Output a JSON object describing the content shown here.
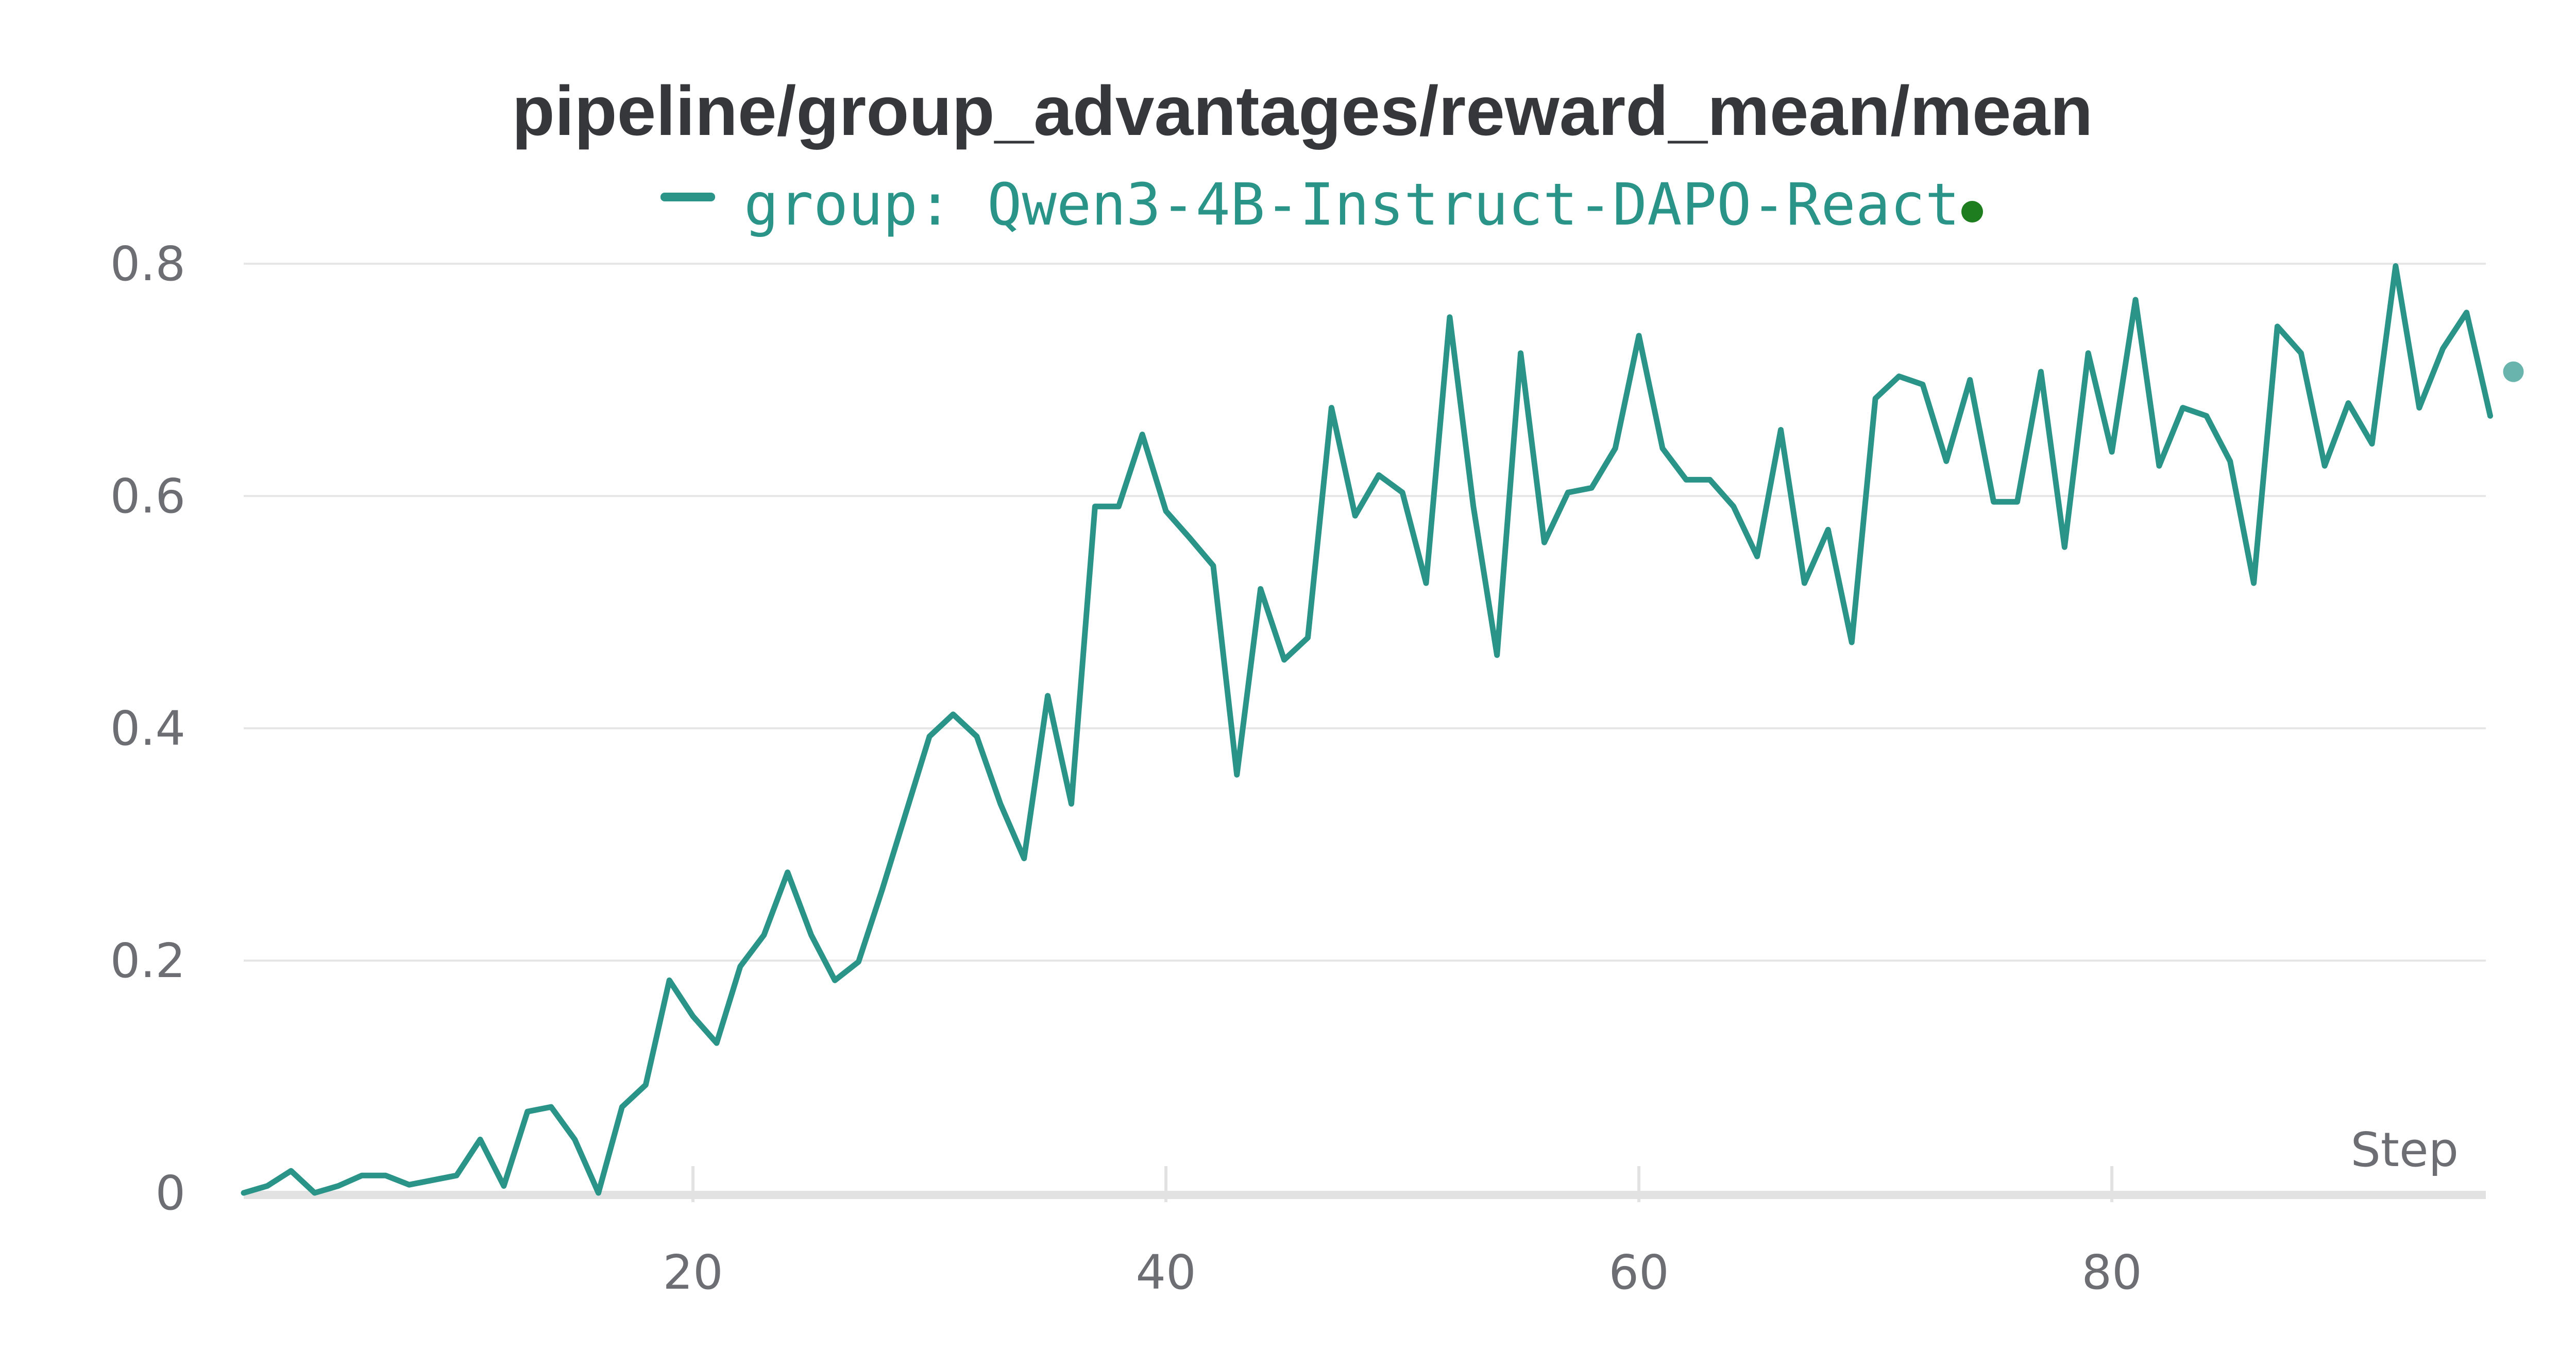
{
  "chart_data": {
    "type": "line",
    "title": "pipeline/group_advantages/reward_mean/mean",
    "xlabel": "Step",
    "ylabel": "",
    "xlim": [
      1,
      96
    ],
    "ylim": [
      0,
      0.8
    ],
    "x_ticks": [
      20,
      40,
      60,
      80
    ],
    "y_ticks": [
      0,
      0.2,
      0.4,
      0.6,
      0.8
    ],
    "y_tick_labels": [
      "0",
      "0.2",
      "0.4",
      "0.6",
      "0.8"
    ],
    "grid": true,
    "legend_position": "top-center",
    "series_color": "#2a9489",
    "status_dot_color": "#1e7d1e",
    "series": [
      {
        "name": "group: Qwen3-4B-Instruct-DAPO-React",
        "x": [
          1,
          2,
          3,
          4,
          5,
          6,
          7,
          8,
          9,
          10,
          11,
          12,
          13,
          14,
          15,
          16,
          17,
          18,
          19,
          20,
          21,
          22,
          23,
          24,
          25,
          26,
          27,
          28,
          29,
          30,
          31,
          32,
          33,
          34,
          35,
          36,
          37,
          38,
          39,
          40,
          41,
          42,
          43,
          44,
          45,
          46,
          47,
          48,
          49,
          50,
          51,
          52,
          53,
          54,
          55,
          56,
          57,
          58,
          59,
          60,
          61,
          62,
          63,
          64,
          65,
          66,
          67,
          68,
          69,
          70,
          71,
          72,
          73,
          74,
          75,
          76,
          77,
          78,
          79,
          80,
          81,
          82,
          83,
          84,
          85,
          86,
          87,
          88,
          89,
          90,
          91,
          92,
          93,
          94,
          95,
          96
        ],
        "values": [
          0.0,
          0.006,
          0.019,
          0.0,
          0.006,
          0.015,
          0.015,
          0.007,
          0.011,
          0.015,
          0.046,
          0.006,
          0.07,
          0.074,
          0.046,
          0.0,
          0.074,
          0.093,
          0.183,
          0.152,
          0.129,
          0.195,
          0.222,
          0.276,
          0.222,
          0.183,
          0.199,
          0.261,
          0.327,
          0.393,
          0.412,
          0.393,
          0.335,
          0.288,
          0.428,
          0.335,
          0.591,
          0.591,
          0.653,
          0.587,
          0.564,
          0.54,
          0.36,
          0.52,
          0.459,
          0.478,
          0.676,
          0.583,
          0.618,
          0.603,
          0.525,
          0.754,
          0.591,
          0.463,
          0.723,
          0.56,
          0.603,
          0.607,
          0.641,
          0.738,
          0.641,
          0.614,
          0.614,
          0.591,
          0.548,
          0.657,
          0.525,
          0.571,
          0.474,
          0.684,
          0.703,
          0.696,
          0.63,
          0.7,
          0.595,
          0.595,
          0.707,
          0.556,
          0.723,
          0.638,
          0.769,
          0.626,
          0.676,
          0.669,
          0.63,
          0.525,
          0.746,
          0.723,
          0.626,
          0.68,
          0.645,
          0.798,
          0.676,
          0.727,
          0.758,
          0.669
        ]
      }
    ]
  }
}
